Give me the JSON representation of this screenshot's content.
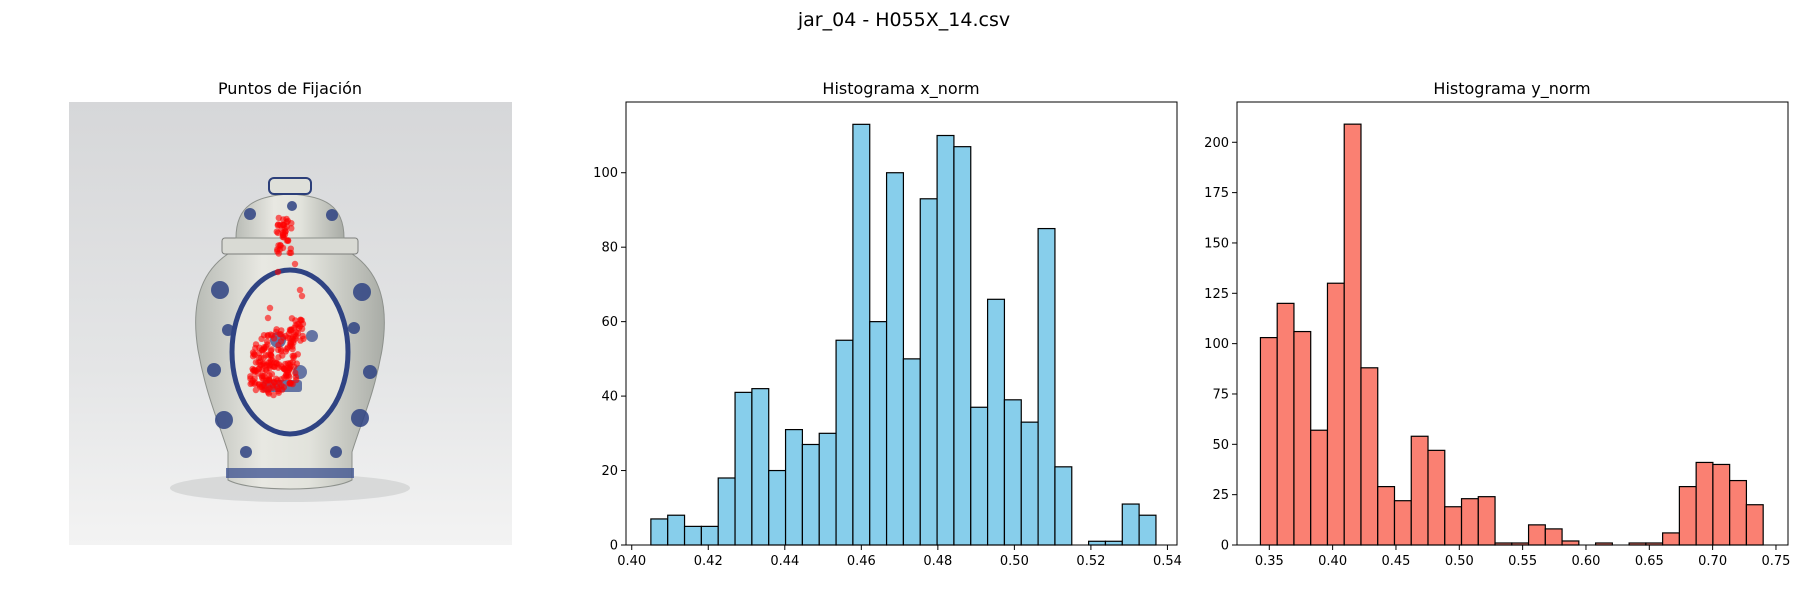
{
  "figure": {
    "suptitle": "jar_04 - H055X_14.csv"
  },
  "image_panel": {
    "title": "Puntos de Fijación",
    "image_alt": "blue-and-white porcelain ginger jar with lid",
    "fixation_color": "#ff0000"
  },
  "chart_data": [
    {
      "type": "bar",
      "title": "Histograma x_norm",
      "xlabel": "",
      "ylabel": "",
      "bar_color": "#87ceeb",
      "edge_color": "#000000",
      "xlim": [
        0.3985,
        0.5425
      ],
      "ylim": [
        0,
        119
      ],
      "xticks": [
        0.4,
        0.42,
        0.44,
        0.46,
        0.48,
        0.5,
        0.52,
        0.54
      ],
      "xtick_labels": [
        "0.40",
        "0.42",
        "0.44",
        "0.46",
        "0.48",
        "0.50",
        "0.52",
        "0.54"
      ],
      "yticks": [
        0,
        20,
        40,
        60,
        80,
        100
      ],
      "ytick_labels": [
        "0",
        "20",
        "40",
        "60",
        "80",
        "100"
      ],
      "bin_start": 0.405,
      "bin_width": 0.0044,
      "values": [
        7,
        8,
        5,
        5,
        18,
        41,
        42,
        20,
        31,
        27,
        30,
        55,
        113,
        60,
        100,
        50,
        93,
        110,
        107,
        37,
        66,
        39,
        33,
        85,
        21,
        0,
        1,
        1,
        11,
        8
      ]
    },
    {
      "type": "bar",
      "title": "Histograma y_norm",
      "xlabel": "",
      "ylabel": "",
      "bar_color": "#fa8072",
      "edge_color": "#000000",
      "xlim": [
        0.3245,
        0.7595
      ],
      "ylim": [
        0,
        220
      ],
      "xticks": [
        0.35,
        0.4,
        0.45,
        0.5,
        0.55,
        0.6,
        0.65,
        0.7,
        0.75
      ],
      "xtick_labels": [
        "0.35",
        "0.40",
        "0.45",
        "0.50",
        "0.55",
        "0.60",
        "0.65",
        "0.70",
        "0.75"
      ],
      "yticks": [
        0,
        25,
        50,
        75,
        100,
        125,
        150,
        175,
        200
      ],
      "ytick_labels": [
        "0",
        "25",
        "50",
        "75",
        "100",
        "125",
        "150",
        "175",
        "200"
      ],
      "bin_start": 0.343,
      "bin_width": 0.01323,
      "values": [
        103,
        120,
        106,
        57,
        130,
        209,
        88,
        29,
        22,
        54,
        47,
        19,
        23,
        24,
        1,
        1,
        10,
        8,
        2,
        0,
        1,
        0,
        1,
        1,
        6,
        29,
        41,
        40,
        32,
        20
      ]
    }
  ]
}
